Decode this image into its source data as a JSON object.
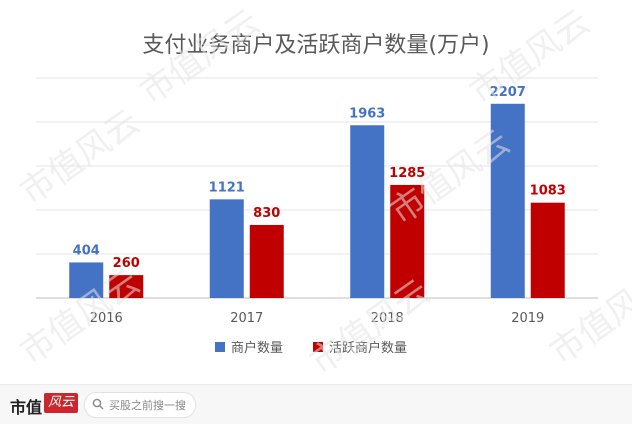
{
  "chart_data": {
    "type": "bar",
    "title": "支付业务商户及活跃商户数量(万户)",
    "categories": [
      "2016",
      "2017",
      "2018",
      "2019"
    ],
    "series": [
      {
        "name": "商户数量",
        "values": [
          404,
          1121,
          1963,
          2207
        ],
        "color": "#4472c4",
        "label_color": "#4472c4"
      },
      {
        "name": "活跃商户数量",
        "values": [
          260,
          830,
          1285,
          1083
        ],
        "color": "#c00000",
        "label_color": "#c00000"
      }
    ],
    "ylim": [
      0,
      2500
    ],
    "grid": true,
    "legend_position": "bottom"
  },
  "watermark": {
    "text": "市值风云"
  },
  "footer": {
    "brand": "市值",
    "brand_mark": "风云",
    "search_placeholder": "买股之前搜一搜"
  }
}
